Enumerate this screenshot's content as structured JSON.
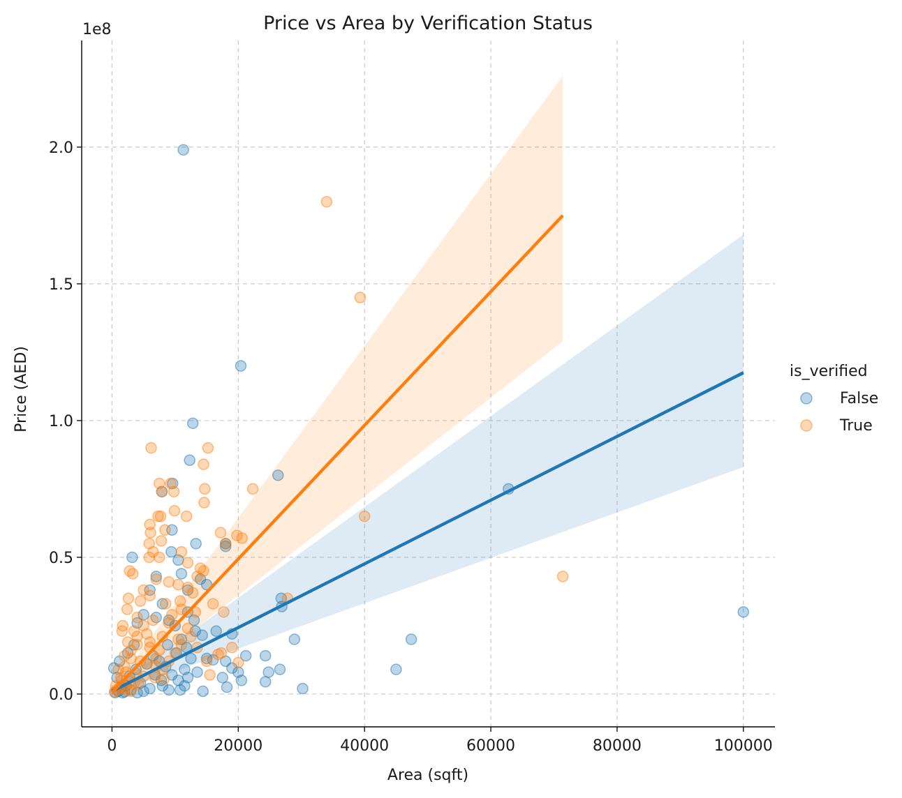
{
  "chart_data": {
    "type": "scatter",
    "title": "Price vs Area by Verification Status",
    "xlabel": "Area (sqft)",
    "ylabel": "Price (AED)",
    "y_offset_label": "1e8",
    "xlim": [
      -4800,
      105000
    ],
    "ylim": [
      -12000000,
      239000000
    ],
    "y_scale_factor": 100000000,
    "xticks": [
      0,
      20000,
      40000,
      60000,
      80000,
      100000
    ],
    "xtick_labels": [
      "0",
      "20000",
      "40000",
      "60000",
      "80000",
      "100000"
    ],
    "yticks": [
      0,
      50000000,
      100000000,
      150000000,
      200000000
    ],
    "ytick_labels": [
      "0.0",
      "0.5",
      "1.0",
      "1.5",
      "2.0"
    ],
    "grid": true,
    "legend": {
      "title": "is_verified",
      "placement": "right",
      "entries": [
        "False",
        "True"
      ]
    },
    "series": [
      {
        "name": "False",
        "color": "#1f77b4",
        "regression": {
          "x": [
            0,
            100000
          ],
          "y": [
            1000000,
            117500000
          ]
        },
        "ci_band": {
          "x": [
            0,
            100000
          ],
          "lower": [
            0,
            83000000
          ],
          "upper": [
            2000000,
            168000000
          ]
        },
        "points": [
          [
            11300,
            199000000
          ],
          [
            20400,
            120000000
          ],
          [
            12800,
            99000000
          ],
          [
            12300,
            85500000
          ],
          [
            26300,
            80000000
          ],
          [
            62800,
            75000000
          ],
          [
            9600,
            77000000
          ],
          [
            7900,
            74000000
          ],
          [
            9500,
            60000000
          ],
          [
            13300,
            55000000
          ],
          [
            18000,
            55000000
          ],
          [
            18000,
            54000000
          ],
          [
            3200,
            50000000
          ],
          [
            10500,
            49000000
          ],
          [
            9400,
            52000000
          ],
          [
            11000,
            44000000
          ],
          [
            14000,
            42000000
          ],
          [
            15000,
            40000000
          ],
          [
            12000,
            38000000
          ],
          [
            26800,
            35000000
          ],
          [
            26900,
            32000000
          ],
          [
            100000,
            30000000
          ],
          [
            7000,
            28000000
          ],
          [
            5000,
            29000000
          ],
          [
            4000,
            26000000
          ],
          [
            13200,
            23000000
          ],
          [
            14300,
            21500000
          ],
          [
            16500,
            23000000
          ],
          [
            19000,
            22000000
          ],
          [
            28900,
            20000000
          ],
          [
            47400,
            20000000
          ],
          [
            21200,
            14000000
          ],
          [
            24300,
            14000000
          ],
          [
            15000,
            13000000
          ],
          [
            16000,
            12500000
          ],
          [
            18000,
            12000000
          ],
          [
            19000,
            9500000
          ],
          [
            20000,
            8000000
          ],
          [
            24800,
            8000000
          ],
          [
            26600,
            9000000
          ],
          [
            45000,
            9000000
          ],
          [
            17500,
            6000000
          ],
          [
            20500,
            5000000
          ],
          [
            24300,
            4500000
          ],
          [
            18200,
            2500000
          ],
          [
            14400,
            1000000
          ],
          [
            30200,
            2000000
          ],
          [
            10800,
            1500000
          ],
          [
            9000,
            1500000
          ],
          [
            8000,
            3000000
          ],
          [
            6000,
            2000000
          ],
          [
            5000,
            1000000
          ],
          [
            4000,
            500000
          ],
          [
            3000,
            1500000
          ],
          [
            2000,
            800000
          ],
          [
            1500,
            2500000
          ],
          [
            1000,
            1000000
          ],
          [
            500,
            500000
          ],
          [
            300,
            9500000
          ],
          [
            800,
            6000000
          ],
          [
            1200,
            12000000
          ],
          [
            2500,
            15000000
          ],
          [
            3500,
            18000000
          ],
          [
            6500,
            14000000
          ],
          [
            7500,
            12000000
          ],
          [
            8500,
            10000000
          ],
          [
            9500,
            7000000
          ],
          [
            10500,
            5000000
          ],
          [
            11500,
            9000000
          ],
          [
            12500,
            13000000
          ],
          [
            13500,
            8000000
          ],
          [
            11000,
            20000000
          ],
          [
            10000,
            25000000
          ],
          [
            9000,
            27000000
          ],
          [
            8000,
            33000000
          ],
          [
            6000,
            38000000
          ],
          [
            7000,
            43000000
          ],
          [
            12000,
            30000000
          ],
          [
            13000,
            27000000
          ],
          [
            11500,
            3000000
          ],
          [
            12000,
            6000000
          ],
          [
            4500,
            4000000
          ],
          [
            2200,
            3000000
          ],
          [
            1700,
            500000
          ],
          [
            2800,
            6500000
          ],
          [
            3800,
            9000000
          ],
          [
            5500,
            11000000
          ],
          [
            6800,
            7000000
          ],
          [
            7800,
            5000000
          ],
          [
            8800,
            18000000
          ],
          [
            10200,
            15000000
          ],
          [
            11800,
            17000000
          ]
        ]
      },
      {
        "name": "True",
        "color": "#ff7f0e",
        "regression": {
          "x": [
            0,
            71400
          ],
          "y": [
            500000,
            175000000
          ]
        },
        "ci_band": {
          "x": [
            0,
            71400
          ],
          "lower": [
            0,
            129000000
          ],
          "upper": [
            1500000,
            226000000
          ]
        },
        "points": [
          [
            34000,
            180000000
          ],
          [
            39300,
            145000000
          ],
          [
            6200,
            90000000
          ],
          [
            15200,
            90000000
          ],
          [
            14500,
            84000000
          ],
          [
            7500,
            77000000
          ],
          [
            9300,
            77000000
          ],
          [
            14700,
            75000000
          ],
          [
            22300,
            75000000
          ],
          [
            7900,
            74000000
          ],
          [
            9800,
            74000000
          ],
          [
            14600,
            70000000
          ],
          [
            9900,
            67000000
          ],
          [
            11800,
            65000000
          ],
          [
            7300,
            65000000
          ],
          [
            7700,
            65000000
          ],
          [
            40000,
            65000000
          ],
          [
            6000,
            62000000
          ],
          [
            8400,
            60000000
          ],
          [
            6100,
            59000000
          ],
          [
            17200,
            59000000
          ],
          [
            19800,
            58000000
          ],
          [
            20600,
            57000000
          ],
          [
            7800,
            56000000
          ],
          [
            18000,
            55000000
          ],
          [
            5900,
            55000000
          ],
          [
            6500,
            52000000
          ],
          [
            11000,
            52000000
          ],
          [
            5900,
            50000000
          ],
          [
            7500,
            50000000
          ],
          [
            12000,
            48000000
          ],
          [
            14000,
            46000000
          ],
          [
            14500,
            45000000
          ],
          [
            2800,
            45000000
          ],
          [
            3300,
            44000000
          ],
          [
            13500,
            43000000
          ],
          [
            71400,
            43000000
          ],
          [
            7000,
            42000000
          ],
          [
            9000,
            41000000
          ],
          [
            10500,
            40000000
          ],
          [
            12000,
            39000000
          ],
          [
            5000,
            38000000
          ],
          [
            6000,
            36000000
          ],
          [
            2600,
            35000000
          ],
          [
            4500,
            34000000
          ],
          [
            8500,
            33000000
          ],
          [
            16000,
            33000000
          ],
          [
            27800,
            35000000
          ],
          [
            11000,
            31000000
          ],
          [
            2400,
            31000000
          ],
          [
            13200,
            30000000
          ],
          [
            17700,
            30000000
          ],
          [
            4000,
            28000000
          ],
          [
            6500,
            27000000
          ],
          [
            9000,
            26000000
          ],
          [
            1700,
            25000000
          ],
          [
            12000,
            24000000
          ],
          [
            3500,
            23000000
          ],
          [
            1600,
            23000000
          ],
          [
            5500,
            22000000
          ],
          [
            8000,
            21000000
          ],
          [
            10500,
            20000000
          ],
          [
            2500,
            19000000
          ],
          [
            4000,
            18000000
          ],
          [
            19000,
            17000000
          ],
          [
            6000,
            17000000
          ],
          [
            7500,
            16000000
          ],
          [
            17300,
            15000000
          ],
          [
            16800,
            14500000
          ],
          [
            2000,
            14000000
          ],
          [
            3000,
            13000000
          ],
          [
            4500,
            12000000
          ],
          [
            20000,
            11500000
          ],
          [
            5500,
            11000000
          ],
          [
            7000,
            10000000
          ],
          [
            1000,
            9000000
          ],
          [
            2200,
            8000000
          ],
          [
            3800,
            7500000
          ],
          [
            15500,
            7000000
          ],
          [
            5000,
            6500000
          ],
          [
            6800,
            6000000
          ],
          [
            8200,
            5500000
          ],
          [
            1500,
            5000000
          ],
          [
            2800,
            4500000
          ],
          [
            3500,
            4000000
          ],
          [
            4200,
            3500000
          ],
          [
            600,
            3000000
          ],
          [
            1200,
            2500000
          ],
          [
            1800,
            2000000
          ],
          [
            2400,
            1500000
          ],
          [
            3000,
            1000000
          ],
          [
            400,
            800000
          ],
          [
            800,
            1500000
          ],
          [
            1400,
            6000000
          ],
          [
            2000,
            10000000
          ],
          [
            3000,
            16000000
          ],
          [
            4000,
            21000000
          ],
          [
            5000,
            25000000
          ],
          [
            6000,
            19000000
          ],
          [
            7000,
            13000000
          ],
          [
            8000,
            9000000
          ],
          [
            9000,
            12000000
          ],
          [
            10000,
            15000000
          ],
          [
            11000,
            18000000
          ],
          [
            12500,
            21000000
          ],
          [
            13500,
            17000000
          ],
          [
            15000,
            12000000
          ],
          [
            9500,
            29000000
          ],
          [
            10800,
            34000000
          ],
          [
            12800,
            37000000
          ]
        ]
      }
    ]
  }
}
